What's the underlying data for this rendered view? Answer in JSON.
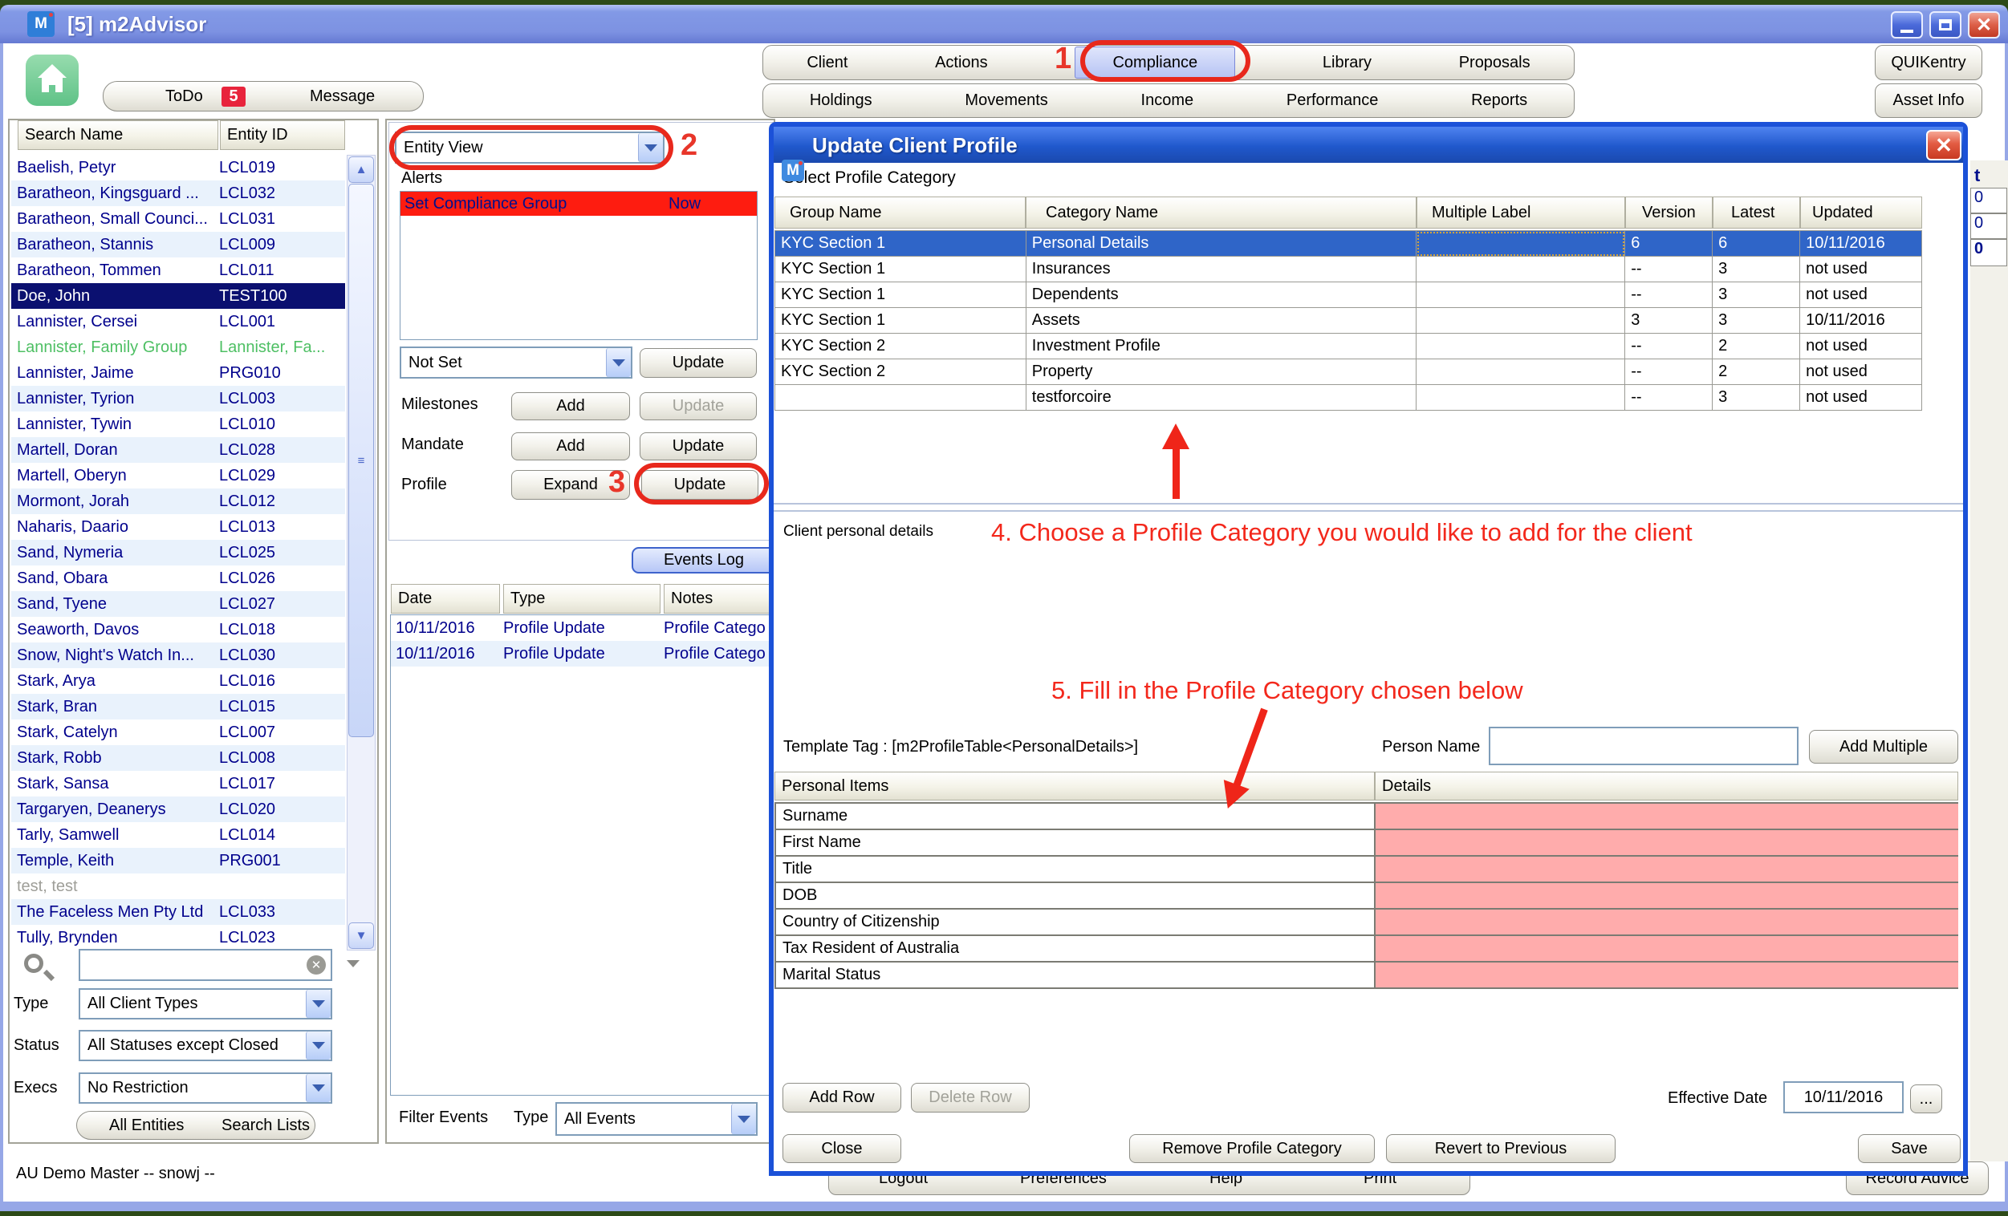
{
  "window": {
    "title": "[5] m2Advisor",
    "status_bar": "AU Demo Master -- snowj --"
  },
  "toolbar": {
    "row1": [
      "Client",
      "Actions",
      "Compliance",
      "Library",
      "Proposals"
    ],
    "row2": [
      "Holdings",
      "Movements",
      "Income",
      "Performance",
      "Reports"
    ],
    "active": "Compliance",
    "quikentry": "QUIKentry",
    "asset_info": "Asset Info",
    "todo": {
      "label": "ToDo",
      "badge": "5",
      "message": "Message"
    }
  },
  "client_panel": {
    "headers": {
      "name": "Search Name",
      "id": "Entity ID"
    },
    "rows": [
      {
        "name": "Baelish, Petyr",
        "id": "LCL019"
      },
      {
        "name": "Baratheon, Kingsguard ...",
        "id": "LCL032"
      },
      {
        "name": "Baratheon, Small Counci...",
        "id": "LCL031"
      },
      {
        "name": "Baratheon, Stannis",
        "id": "LCL009"
      },
      {
        "name": "Baratheon, Tommen",
        "id": "LCL011"
      },
      {
        "name": "Doe, John",
        "id": "TEST100",
        "cls": "sel"
      },
      {
        "name": "Lannister, Cersei",
        "id": "LCL001"
      },
      {
        "name": "Lannister, Family Group",
        "id": "Lannister, Fa...",
        "cls": "green"
      },
      {
        "name": "Lannister, Jaime",
        "id": "PRG010"
      },
      {
        "name": "Lannister, Tyrion",
        "id": "LCL003"
      },
      {
        "name": "Lannister, Tywin",
        "id": "LCL010"
      },
      {
        "name": "Martell, Doran",
        "id": "LCL028"
      },
      {
        "name": "Martell, Oberyn",
        "id": "LCL029"
      },
      {
        "name": "Mormont, Jorah",
        "id": "LCL012"
      },
      {
        "name": "Naharis, Daario",
        "id": "LCL013"
      },
      {
        "name": "Sand, Nymeria",
        "id": "LCL025"
      },
      {
        "name": "Sand, Obara",
        "id": "LCL026"
      },
      {
        "name": "Sand, Tyene",
        "id": "LCL027"
      },
      {
        "name": "Seaworth, Davos",
        "id": "LCL018"
      },
      {
        "name": "Snow, Night's Watch In...",
        "id": "LCL030"
      },
      {
        "name": "Stark, Arya",
        "id": "LCL016"
      },
      {
        "name": "Stark, Bran",
        "id": "LCL015"
      },
      {
        "name": "Stark, Catelyn",
        "id": "LCL007"
      },
      {
        "name": "Stark, Robb",
        "id": "LCL008"
      },
      {
        "name": "Stark, Sansa",
        "id": "LCL017"
      },
      {
        "name": "Targaryen, Deanerys",
        "id": "LCL020"
      },
      {
        "name": "Tarly, Samwell",
        "id": "LCL014"
      },
      {
        "name": "Temple, Keith",
        "id": "PRG001"
      },
      {
        "name": "test, test",
        "id": "",
        "cls": "muted"
      },
      {
        "name": "The Faceless Men Pty Ltd",
        "id": "LCL033"
      },
      {
        "name": "Tully, Brynden",
        "id": "LCL023"
      }
    ],
    "search_value": "",
    "filters": {
      "type_label": "Type",
      "type_value": "All Client Types",
      "status_label": "Status",
      "status_value": "All Statuses except Closed",
      "execs_label": "Execs",
      "execs_value": "No Restriction"
    },
    "footer_left": "All Entities",
    "footer_right": "Search Lists"
  },
  "entity_panel": {
    "view_selector": "Entity View",
    "alerts_label": "Alerts",
    "alert": {
      "text": "Set Compliance Group",
      "due": "Now"
    },
    "compliance_value": "Not Set",
    "compliance_update": "Update",
    "milestones_label": "Milestones",
    "milestones_add": "Add",
    "milestones_update": "Update",
    "mandate_label": "Mandate",
    "mandate_add": "Add",
    "mandate_update": "Update",
    "profile_label": "Profile",
    "profile_expand": "Expand",
    "profile_update": "Update",
    "events_log_label": "Events Log",
    "events": {
      "headers": [
        "Date",
        "Type",
        "Notes"
      ],
      "rows": [
        [
          "10/11/2016",
          "Profile Update",
          "Profile Catego"
        ],
        [
          "10/11/2016",
          "Profile Update",
          "Profile Catego"
        ]
      ]
    },
    "filter_label": "Filter Events",
    "filter_type_label": "Type",
    "filter_value": "All Events"
  },
  "dialog": {
    "title": "Update Client Profile",
    "section1": "Select Profile Category",
    "category_table": {
      "headers": [
        "Group Name",
        "Category Name",
        "Multiple Label",
        "Version",
        "Latest",
        "Updated"
      ],
      "selected_index": 0,
      "rows": [
        [
          "KYC Section 1",
          "Personal Details",
          "",
          "6",
          "6",
          "10/11/2016"
        ],
        [
          "KYC Section 1",
          "Insurances",
          "",
          "--",
          "3",
          "not used"
        ],
        [
          "KYC Section 1",
          "Dependents",
          "",
          "--",
          "3",
          "not used"
        ],
        [
          "KYC Section 1",
          "Assets",
          "",
          "3",
          "3",
          "10/11/2016"
        ],
        [
          "KYC Section 2",
          "Investment Profile",
          "",
          "--",
          "2",
          "not used"
        ],
        [
          "KYC Section 2",
          "Property",
          "",
          "--",
          "2",
          "not used"
        ],
        [
          "",
          "testforcoire",
          "",
          "--",
          "3",
          "not used"
        ]
      ]
    },
    "details_label": "Client personal details",
    "template_tag": "Template Tag : [m2ProfileTable<PersonalDetails>]",
    "person_name_label": "Person Name",
    "person_name_value": "",
    "add_multiple": "Add Multiple",
    "items_table": {
      "headers": [
        "Personal Items",
        "Details"
      ],
      "rows": [
        "Surname",
        "First Name",
        "Title",
        "DOB",
        "Country of Citizenship",
        "Tax Resident of Australia",
        "Marital Status"
      ]
    },
    "add_row": "Add Row",
    "delete_row": "Delete Row",
    "effective_date_label": "Effective Date",
    "effective_date": "10/11/2016",
    "date_picker": "...",
    "close": "Close",
    "remove": "Remove Profile Category",
    "revert": "Revert to Previous",
    "save": "Save"
  },
  "background": {
    "bottom_buttons": [
      "Logout",
      "Preferences",
      "Help",
      "Print"
    ],
    "record_advice": "Record Advice",
    "right_col_header": "t",
    "right_col_values": [
      "0",
      "0",
      "0"
    ]
  },
  "annotations": {
    "n1": "1",
    "n2": "2",
    "n3": "3",
    "step4": "4. Choose a Profile Category you would like to add for the client",
    "step5": "5. Fill in the Profile Category chosen below",
    "accent": "#f3281c"
  }
}
